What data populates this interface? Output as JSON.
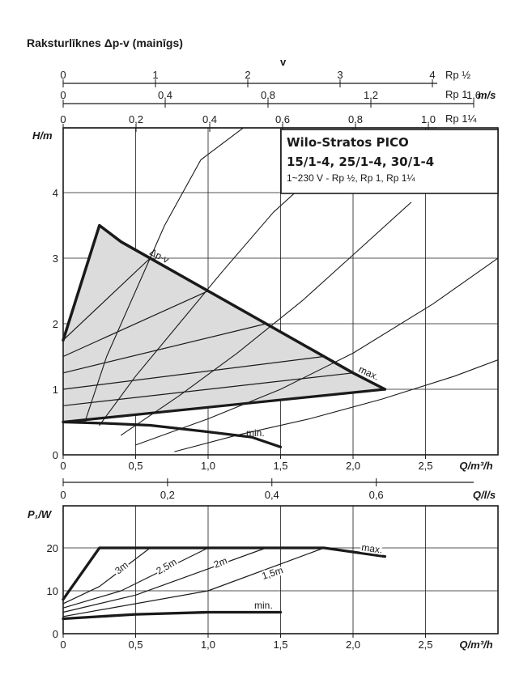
{
  "title": "Raksturlīknes Δp-v (mainīgs)",
  "colors": {
    "ink": "#1a1a1a",
    "shade": "#dcdcdc",
    "grid": "#1a1a1a"
  },
  "legend_box": {
    "line1": "Wilo-Stratos PICO",
    "line2": "15/1-4, 25/1-4, 30/1-4",
    "line3": "1~230 V - Rp ½, Rp 1, Rp 1¼"
  },
  "velocity_scales": {
    "title": "v",
    "unit": "m/s",
    "rp_half": {
      "label": "Rp ½",
      "ticks": [
        "0",
        "1",
        "2",
        "3",
        "4"
      ]
    },
    "rp_1": {
      "label": "Rp 1",
      "ticks": [
        "0",
        "0,4",
        "0,8",
        "1,2",
        "1,6"
      ]
    },
    "rp_1_25": {
      "label": "Rp 1¼",
      "ticks": [
        "0",
        "0,2",
        "0,4",
        "0,6",
        "0,8",
        "1,0"
      ]
    }
  },
  "chart_data": [
    {
      "type": "line",
      "title": "Raksturlīknes Δp-v (mainīgs)",
      "xlabel": "Q/m³/h",
      "ylabel": "H/m",
      "xlim": [
        0,
        3.0
      ],
      "ylim": [
        0,
        5.0
      ],
      "grid": true,
      "x_ticks": [
        "0",
        "0,5",
        "1,0",
        "1,5",
        "2,0",
        "2,5"
      ],
      "y_ticks": [
        "0",
        "1",
        "2",
        "3",
        "4"
      ],
      "secondary_x": {
        "label": "Q/l/s",
        "ticks": [
          "0",
          "0,2",
          "0,4",
          "0,6"
        ]
      },
      "annotations": [
        "Δp-v",
        "max.",
        "min."
      ],
      "series": [
        {
          "name": "max.",
          "x": [
            0,
            0.25,
            0.4,
            1.0,
            1.4,
            2.0,
            2.22
          ],
          "y": [
            1.75,
            3.5,
            3.25,
            2.5,
            2.0,
            1.25,
            1.0
          ]
        },
        {
          "name": "min.",
          "x": [
            0,
            0.3,
            0.6,
            1.0,
            1.3,
            1.5
          ],
          "y": [
            0.5,
            0.48,
            0.45,
            0.35,
            0.27,
            0.12
          ]
        },
        {
          "name": "Δp-v",
          "x": [
            0,
            2.22
          ],
          "y": [
            0.5,
            1.0
          ]
        },
        {
          "x": [
            0,
            0.6
          ],
          "y": [
            1.75,
            3.0
          ]
        },
        {
          "x": [
            0,
            1.0
          ],
          "y": [
            1.5,
            2.5
          ]
        },
        {
          "x": [
            0,
            1.4
          ],
          "y": [
            1.25,
            2.0
          ]
        },
        {
          "x": [
            0,
            1.8
          ],
          "y": [
            1.0,
            1.5
          ]
        },
        {
          "x": [
            0,
            2.0
          ],
          "y": [
            0.75,
            1.25
          ]
        },
        {
          "x": [
            0.15,
            0.3,
            0.5,
            0.7,
            0.95,
            1.25
          ],
          "y": [
            0.5,
            1.5,
            2.5,
            3.5,
            4.5,
            5.0
          ]
        },
        {
          "x": [
            0.25,
            0.5,
            0.8,
            1.1,
            1.45,
            1.7
          ],
          "y": [
            0.45,
            1.2,
            2.0,
            2.8,
            3.7,
            4.2
          ]
        },
        {
          "x": [
            0.4,
            0.8,
            1.2,
            1.65,
            2.0,
            2.4
          ],
          "y": [
            0.3,
            0.9,
            1.55,
            2.35,
            3.05,
            3.85
          ]
        },
        {
          "x": [
            0.5,
            1.0,
            1.5,
            2.0,
            2.55,
            3.0
          ],
          "y": [
            0.15,
            0.55,
            1.0,
            1.55,
            2.3,
            3.0
          ]
        },
        {
          "x": [
            0.77,
            1.2,
            1.7,
            2.2,
            2.7,
            3.0
          ],
          "y": [
            0.05,
            0.3,
            0.55,
            0.85,
            1.2,
            1.45
          ]
        }
      ]
    },
    {
      "type": "line",
      "xlabel": "Q/m³/h",
      "ylabel": "P₁/W",
      "xlim": [
        0,
        3.0
      ],
      "ylim": [
        0,
        25
      ],
      "grid": true,
      "x_ticks": [
        "0",
        "0,5",
        "1,0",
        "1,5",
        "2,0",
        "2,5"
      ],
      "y_ticks": [
        "0",
        "10",
        "20"
      ],
      "series": [
        {
          "name": "max.",
          "x": [
            0,
            0.25,
            1.0,
            1.8,
            2.22
          ],
          "y": [
            8,
            20,
            20,
            20,
            18
          ]
        },
        {
          "name": "3m",
          "x": [
            0,
            0.25,
            0.6
          ],
          "y": [
            7,
            11,
            20
          ]
        },
        {
          "name": "2,5m",
          "x": [
            0,
            0.4,
            1.0
          ],
          "y": [
            6,
            10,
            20
          ]
        },
        {
          "name": "2m",
          "x": [
            0,
            0.5,
            1.4
          ],
          "y": [
            5,
            9,
            20
          ]
        },
        {
          "name": "1,5m",
          "x": [
            0,
            1.0,
            1.8
          ],
          "y": [
            4,
            10,
            20
          ]
        },
        {
          "name": "min.",
          "x": [
            0,
            0.5,
            1.0,
            1.5
          ],
          "y": [
            3.5,
            4.5,
            5,
            5
          ]
        }
      ]
    }
  ]
}
